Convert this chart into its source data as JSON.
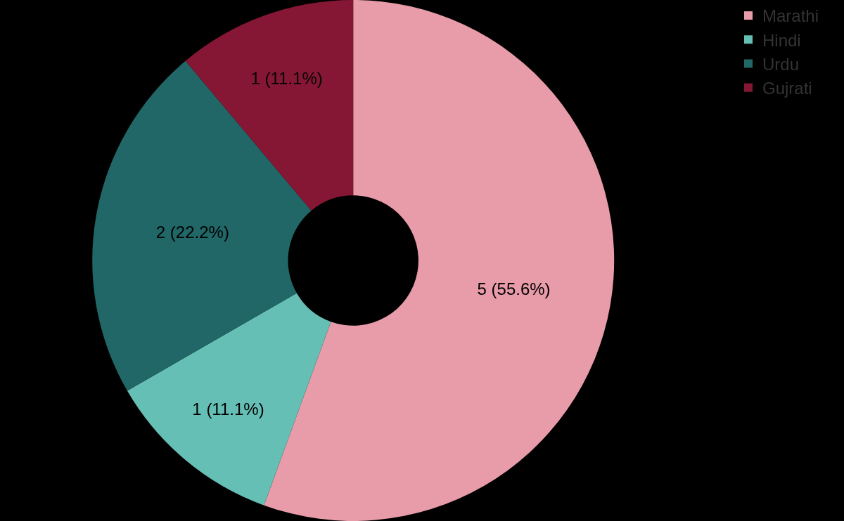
{
  "chart_data": {
    "type": "donut",
    "categories": [
      "Marathi",
      "Hindi",
      "Urdu",
      "Gujrati"
    ],
    "values": [
      5,
      1,
      2,
      1
    ],
    "value_labels": [
      "5 (55.6%)",
      "1 (11.1%)",
      "2 (22.2%)",
      "1 (11.1%)"
    ],
    "colors": [
      "#e89ba9",
      "#66bfb5",
      "#216767",
      "#851735"
    ],
    "legend": "top right"
  }
}
